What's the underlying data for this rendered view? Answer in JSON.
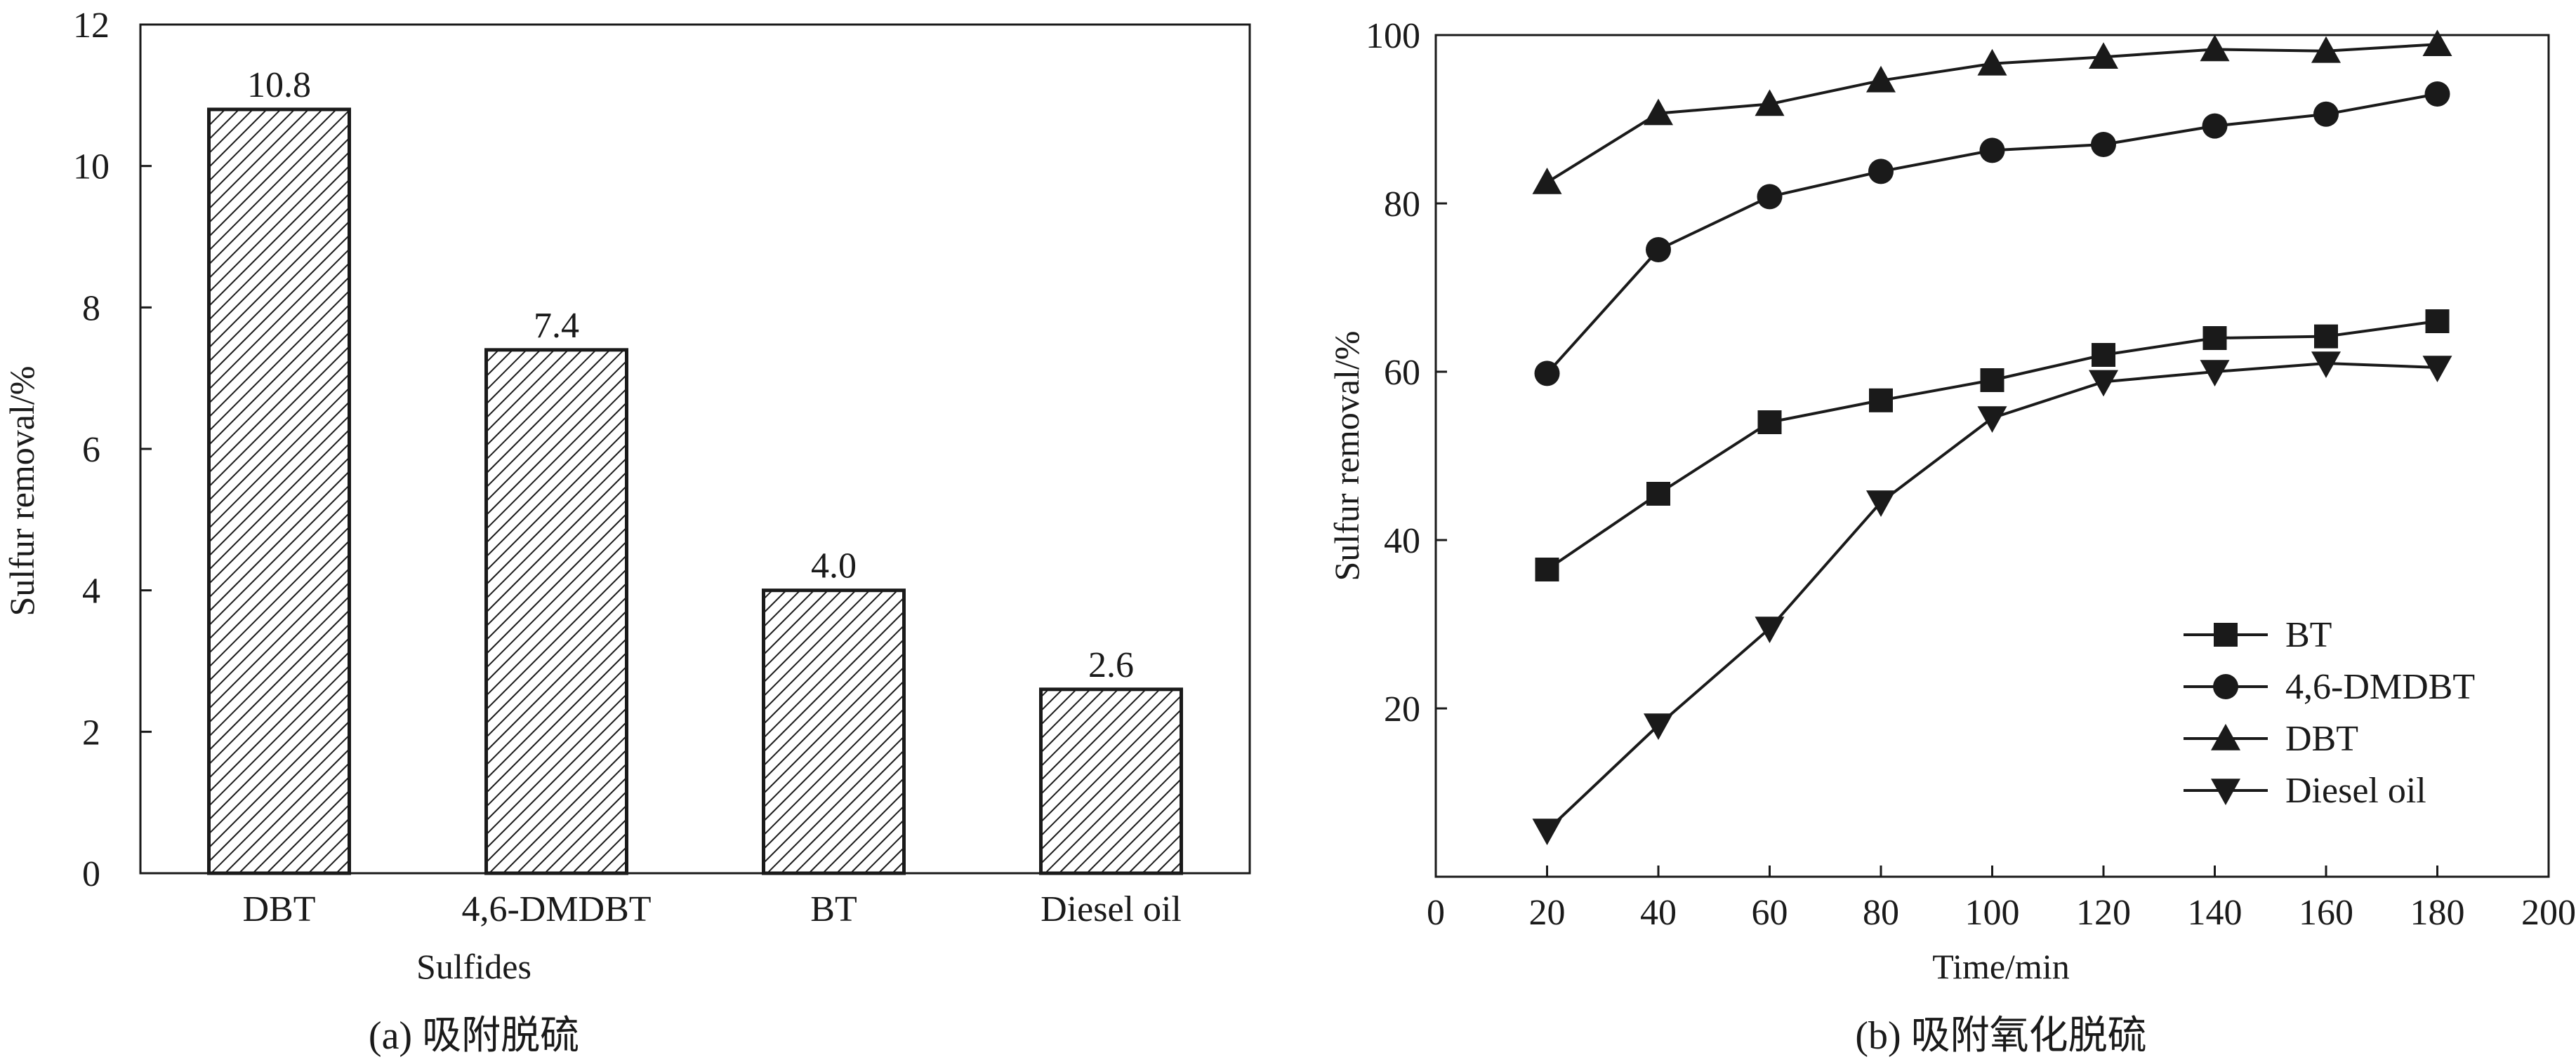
{
  "chart_data": [
    {
      "type": "bar",
      "categories": [
        "DBT",
        "4,6-DMDBT",
        "BT",
        "Diesel oil"
      ],
      "values": [
        10.8,
        7.4,
        4.0,
        2.6
      ],
      "value_labels": [
        "10.8",
        "7.4",
        "4.0",
        "2.6"
      ],
      "xlabel": "Sulfides",
      "ylabel": "Sulfur removal/%",
      "ylim": [
        0,
        12
      ],
      "yticks": [
        0,
        2,
        4,
        6,
        8,
        10,
        12
      ],
      "bar_fill": "diagonal hatch",
      "caption": "(a) 吸附脱硫",
      "grid": false
    },
    {
      "type": "line",
      "x": [
        20,
        40,
        60,
        80,
        100,
        120,
        140,
        160,
        180
      ],
      "series": [
        {
          "name": "BT",
          "marker": "square",
          "values": [
            36.5,
            45.5,
            54,
            56.6,
            59,
            62,
            64,
            64.2,
            66
          ]
        },
        {
          "name": "4,6-DMDBT",
          "marker": "circle",
          "values": [
            59.8,
            74.5,
            80.8,
            83.8,
            86.3,
            87,
            89.2,
            90.6,
            93
          ]
        },
        {
          "name": "DBT",
          "marker": "triangle-up",
          "values": [
            82.5,
            90.7,
            91.8,
            94.6,
            96.6,
            97.4,
            98.3,
            98.1,
            98.9
          ]
        },
        {
          "name": "Diesel oil",
          "marker": "triangle-down",
          "values": [
            5.5,
            18,
            29.5,
            44.5,
            54.5,
            58.8,
            60,
            61,
            60.5
          ]
        }
      ],
      "xlabel": "Time/min",
      "ylabel": "Sulfur removal/%",
      "xlim": [
        0,
        200
      ],
      "ylim": [
        0,
        100
      ],
      "xticks": [
        0,
        20,
        40,
        60,
        80,
        100,
        120,
        140,
        160,
        180,
        200
      ],
      "yticks": [
        20,
        40,
        60,
        80,
        100
      ],
      "legend_position": "bottom-right",
      "caption": "(b) 吸附氧化脱硫",
      "grid": false
    }
  ]
}
